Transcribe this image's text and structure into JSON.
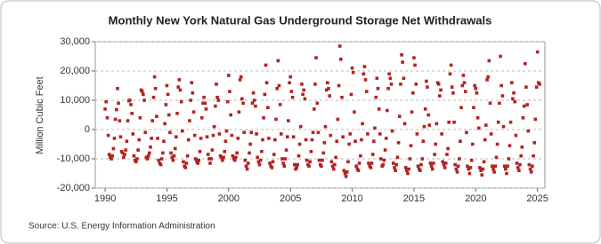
{
  "chart_data": {
    "type": "scatter",
    "title": "Monthly New York Natural Gas Underground Storage Net Withdrawals",
    "y_label": "Million Cubic Feet",
    "source": "Source: U.S. Energy Information Administration",
    "color": "#b22222",
    "grid": true,
    "xlim": [
      1989.2,
      2025.6
    ],
    "ylim": [
      -20000,
      30000
    ],
    "xticks": [
      1990,
      1995,
      2000,
      2005,
      2010,
      2015,
      2020,
      2025
    ],
    "yticks": [
      {
        "value": -20000,
        "label": "-20,000"
      },
      {
        "value": -10000,
        "label": "-10,000"
      },
      0,
      {
        "value": 10000,
        "label": "10,000"
      },
      {
        "value": 20000,
        "label": "20,000"
      },
      {
        "value": 30000,
        "label": "30,000"
      }
    ],
    "x": [
      1990,
      1990.08,
      1990.17,
      1990.25,
      1990.33,
      1990.42,
      1990.5,
      1990.58,
      1990.67,
      1990.75,
      1990.83,
      1990.92,
      1991,
      1991.08,
      1991.17,
      1991.25,
      1991.33,
      1991.42,
      1991.5,
      1991.58,
      1991.67,
      1991.75,
      1991.83,
      1991.92,
      1992,
      1992.08,
      1992.17,
      1992.25,
      1992.33,
      1992.42,
      1992.5,
      1992.58,
      1992.67,
      1992.75,
      1992.83,
      1992.92,
      1993,
      1993.08,
      1993.17,
      1993.25,
      1993.33,
      1993.42,
      1993.5,
      1993.58,
      1993.67,
      1993.75,
      1993.83,
      1993.92,
      1994,
      1994.08,
      1994.17,
      1994.25,
      1994.33,
      1994.42,
      1994.5,
      1994.58,
      1994.67,
      1994.75,
      1994.83,
      1994.92,
      1995,
      1995.08,
      1995.17,
      1995.25,
      1995.33,
      1995.42,
      1995.5,
      1995.58,
      1995.67,
      1995.75,
      1995.83,
      1995.92,
      1996,
      1996.08,
      1996.17,
      1996.25,
      1996.33,
      1996.42,
      1996.5,
      1996.58,
      1996.67,
      1996.75,
      1996.83,
      1996.92,
      1997,
      1997.08,
      1997.17,
      1997.25,
      1997.33,
      1997.42,
      1997.5,
      1997.58,
      1997.67,
      1997.75,
      1997.83,
      1997.92,
      1998,
      1998.08,
      1998.17,
      1998.25,
      1998.33,
      1998.42,
      1998.5,
      1998.58,
      1998.67,
      1998.75,
      1998.83,
      1998.92,
      1999,
      1999.08,
      1999.17,
      1999.25,
      1999.33,
      1999.42,
      1999.5,
      1999.58,
      1999.67,
      1999.75,
      1999.83,
      1999.92,
      2000,
      2000.08,
      2000.17,
      2000.25,
      2000.33,
      2000.42,
      2000.5,
      2000.58,
      2000.67,
      2000.75,
      2000.83,
      2000.92,
      2001,
      2001.08,
      2001.17,
      2001.25,
      2001.33,
      2001.42,
      2001.5,
      2001.58,
      2001.67,
      2001.75,
      2001.83,
      2001.92,
      2002,
      2002.08,
      2002.17,
      2002.25,
      2002.33,
      2002.42,
      2002.5,
      2002.58,
      2002.67,
      2002.75,
      2002.83,
      2002.92,
      2003,
      2003.08,
      2003.17,
      2003.25,
      2003.33,
      2003.42,
      2003.5,
      2003.58,
      2003.67,
      2003.75,
      2003.83,
      2003.92,
      2004,
      2004.08,
      2004.17,
      2004.25,
      2004.33,
      2004.42,
      2004.5,
      2004.58,
      2004.67,
      2004.75,
      2004.83,
      2004.92,
      2005,
      2005.08,
      2005.17,
      2005.25,
      2005.33,
      2005.42,
      2005.5,
      2005.58,
      2005.67,
      2005.75,
      2005.83,
      2005.92,
      2006,
      2006.08,
      2006.17,
      2006.25,
      2006.33,
      2006.42,
      2006.5,
      2006.58,
      2006.67,
      2006.75,
      2006.83,
      2006.92,
      2007,
      2007.08,
      2007.17,
      2007.25,
      2007.33,
      2007.42,
      2007.5,
      2007.58,
      2007.67,
      2007.75,
      2007.83,
      2007.92,
      2008,
      2008.08,
      2008.17,
      2008.25,
      2008.33,
      2008.42,
      2008.5,
      2008.58,
      2008.67,
      2008.75,
      2008.83,
      2008.92,
      2009,
      2009.08,
      2009.17,
      2009.25,
      2009.33,
      2009.42,
      2009.5,
      2009.58,
      2009.67,
      2009.75,
      2009.83,
      2009.92,
      2010,
      2010.08,
      2010.17,
      2010.25,
      2010.33,
      2010.42,
      2010.5,
      2010.58,
      2010.67,
      2010.75,
      2010.83,
      2010.92,
      2011,
      2011.08,
      2011.17,
      2011.25,
      2011.33,
      2011.42,
      2011.5,
      2011.58,
      2011.67,
      2011.75,
      2011.83,
      2011.92,
      2012,
      2012.08,
      2012.17,
      2012.25,
      2012.33,
      2012.42,
      2012.5,
      2012.58,
      2012.67,
      2012.75,
      2012.83,
      2012.92,
      2013,
      2013.08,
      2013.17,
      2013.25,
      2013.33,
      2013.42,
      2013.5,
      2013.58,
      2013.67,
      2013.75,
      2013.83,
      2013.92,
      2014,
      2014.08,
      2014.17,
      2014.25,
      2014.33,
      2014.42,
      2014.5,
      2014.58,
      2014.67,
      2014.75,
      2014.83,
      2014.92,
      2015,
      2015.08,
      2015.17,
      2015.25,
      2015.33,
      2015.42,
      2015.5,
      2015.58,
      2015.67,
      2015.75,
      2015.83,
      2015.92,
      2016,
      2016.08,
      2016.17,
      2016.25,
      2016.33,
      2016.42,
      2016.5,
      2016.58,
      2016.67,
      2016.75,
      2016.83,
      2016.92,
      2017,
      2017.08,
      2017.17,
      2017.25,
      2017.33,
      2017.42,
      2017.5,
      2017.58,
      2017.67,
      2017.75,
      2017.83,
      2017.92,
      2018,
      2018.08,
      2018.17,
      2018.25,
      2018.33,
      2018.42,
      2018.5,
      2018.58,
      2018.67,
      2018.75,
      2018.83,
      2018.92,
      2019,
      2019.08,
      2019.17,
      2019.25,
      2019.33,
      2019.42,
      2019.5,
      2019.58,
      2019.67,
      2019.75,
      2019.83,
      2019.92,
      2020,
      2020.08,
      2020.17,
      2020.25,
      2020.33,
      2020.42,
      2020.5,
      2020.58,
      2020.67,
      2020.75,
      2020.83,
      2020.92,
      2021,
      2021.08,
      2021.17,
      2021.25,
      2021.33,
      2021.42,
      2021.5,
      2021.58,
      2021.67,
      2021.75,
      2021.83,
      2021.92,
      2022,
      2022.08,
      2022.17,
      2022.25,
      2022.33,
      2022.42,
      2022.5,
      2022.58,
      2022.67,
      2022.75,
      2022.83,
      2022.92,
      2023,
      2023.08,
      2023.17,
      2023.25,
      2023.33,
      2023.42,
      2023.5,
      2023.58,
      2023.67,
      2023.75,
      2023.83,
      2023.92,
      2024,
      2024.08,
      2024.17,
      2024.25,
      2024.33,
      2024.42,
      2024.5,
      2024.58,
      2024.67,
      2024.75,
      2024.83,
      2024.92,
      2025,
      2025.08,
      2025.17
    ],
    "values": [
      7000,
      9500,
      4000,
      -2000,
      -8500,
      -9500,
      -10000,
      -9000,
      -6500,
      -3000,
      3500,
      6800,
      14000,
      9000,
      3000,
      -2500,
      -7500,
      -8000,
      -9500,
      -8500,
      -7000,
      -4000,
      3000,
      9800,
      10000,
      8500,
      5500,
      -1500,
      -9000,
      -10500,
      -11000,
      -10000,
      -7000,
      -3500,
      4000,
      13500,
      13000,
      12000,
      10000,
      -1000,
      -9500,
      -10000,
      -9000,
      -8000,
      -6000,
      -3000,
      3000,
      11000,
      18000,
      14000,
      4500,
      -3000,
      -10500,
      -11500,
      -12000,
      -10000,
      -8000,
      -4000,
      2000,
      8500,
      15000,
      12000,
      5000,
      -1000,
      -8000,
      -9500,
      -10500,
      -9000,
      -6500,
      -2500,
      5500,
      14500,
      17000,
      13500,
      9500,
      -500,
      -11000,
      -12500,
      -13000,
      -11500,
      -9000,
      -3500,
      3000,
      10000,
      16000,
      12500,
      6000,
      -2000,
      -10000,
      -11000,
      -11500,
      -10500,
      -7500,
      -3000,
      4000,
      9000,
      11000,
      9000,
      7000,
      -2500,
      -8500,
      -10000,
      -11500,
      -10000,
      -7000,
      -2000,
      1000,
      8000,
      15500,
      11000,
      10000,
      -1500,
      -9000,
      -9500,
      -10500,
      -9500,
      -7500,
      -4000,
      -500,
      9500,
      18500,
      13000,
      5000,
      -2000,
      -9000,
      -10000,
      -10500,
      -9500,
      -8000,
      -3000,
      6000,
      17000,
      18000,
      10500,
      9000,
      -1000,
      -10500,
      -12500,
      -13500,
      -11500,
      -8000,
      -5000,
      -1000,
      9000,
      12500,
      10000,
      8000,
      -1500,
      -9500,
      -11000,
      -12000,
      -10500,
      -7500,
      -3500,
      4000,
      12000,
      22000,
      16000,
      7500,
      -3000,
      -11500,
      -12500,
      -13000,
      -11000,
      -8500,
      -3500,
      3500,
      14000,
      23500,
      15000,
      8500,
      -1500,
      -10000,
      -11500,
      -12500,
      -10000,
      -7000,
      -2500,
      3000,
      16000,
      18000,
      13000,
      11000,
      -2500,
      -12000,
      -13500,
      -13000,
      -12000,
      -9000,
      -5000,
      1000,
      15500,
      12000,
      13500,
      10500,
      -3500,
      -10500,
      -12000,
      -12500,
      -11000,
      -7500,
      -3500,
      -1000,
      7000,
      15500,
      24500,
      9000,
      -1000,
      -10500,
      -12000,
      -12500,
      -10500,
      -8000,
      -4500,
      1000,
      13500,
      16000,
      14000,
      11500,
      -2000,
      -11000,
      -12500,
      -13500,
      -12000,
      -9500,
      -4000,
      3500,
      15000,
      28500,
      24000,
      11000,
      -2500,
      -14000,
      -15000,
      -16000,
      -14500,
      -11000,
      -5000,
      -1500,
      12000,
      21000,
      19500,
      6000,
      -4000,
      -12500,
      -13500,
      -14000,
      -11500,
      -9000,
      -3500,
      2000,
      19000,
      21500,
      17000,
      13000,
      -1500,
      -11500,
      -12500,
      -13000,
      -11500,
      -8500,
      -4000,
      500,
      11000,
      17500,
      14000,
      7000,
      -1500,
      -10000,
      -12500,
      -12000,
      -10500,
      -7000,
      -3000,
      6500,
      14000,
      19000,
      17500,
      15500,
      -500,
      -11500,
      -13000,
      -14000,
      -12000,
      -9500,
      -4500,
      4500,
      15500,
      25500,
      23000,
      17500,
      2000,
      -13000,
      -14000,
      -15000,
      -13500,
      -10000,
      -5500,
      6000,
      12500,
      24500,
      22000,
      15500,
      -1500,
      -12500,
      -13500,
      -14000,
      -12000,
      -10000,
      -4000,
      1000,
      7000,
      16500,
      14500,
      5000,
      1500,
      -11500,
      -12500,
      -13500,
      -11500,
      -8500,
      -5000,
      2000,
      16000,
      15500,
      11500,
      13500,
      -1500,
      -11000,
      -12000,
      -13000,
      -11500,
      -8500,
      -6500,
      2500,
      19000,
      22000,
      14500,
      12500,
      2500,
      -12000,
      -13500,
      -14500,
      -12500,
      -10000,
      -4000,
      7500,
      15000,
      18500,
      16000,
      13000,
      -1000,
      -12500,
      -13500,
      -15000,
      -13000,
      -10500,
      -5000,
      7500,
      15000,
      14000,
      12500,
      4000,
      500,
      -13000,
      -14000,
      -15500,
      -13500,
      -11000,
      -3500,
      1500,
      17000,
      18000,
      23500,
      9000,
      -1500,
      -12500,
      -13500,
      -14500,
      -12500,
      -9500,
      -5000,
      2500,
      9000,
      25000,
      15000,
      11500,
      1000,
      -12500,
      -13500,
      -15000,
      -12500,
      -10000,
      -5500,
      2500,
      16000,
      10500,
      12500,
      9500,
      -2000,
      -11500,
      -13000,
      -14000,
      -12000,
      -9000,
      -6000,
      4000,
      8000,
      22500,
      14500,
      8500,
      -500,
      -12000,
      -13500,
      -14500,
      -12500,
      -9000,
      -4500,
      3500,
      14500,
      26500,
      16000,
      15500
    ]
  }
}
